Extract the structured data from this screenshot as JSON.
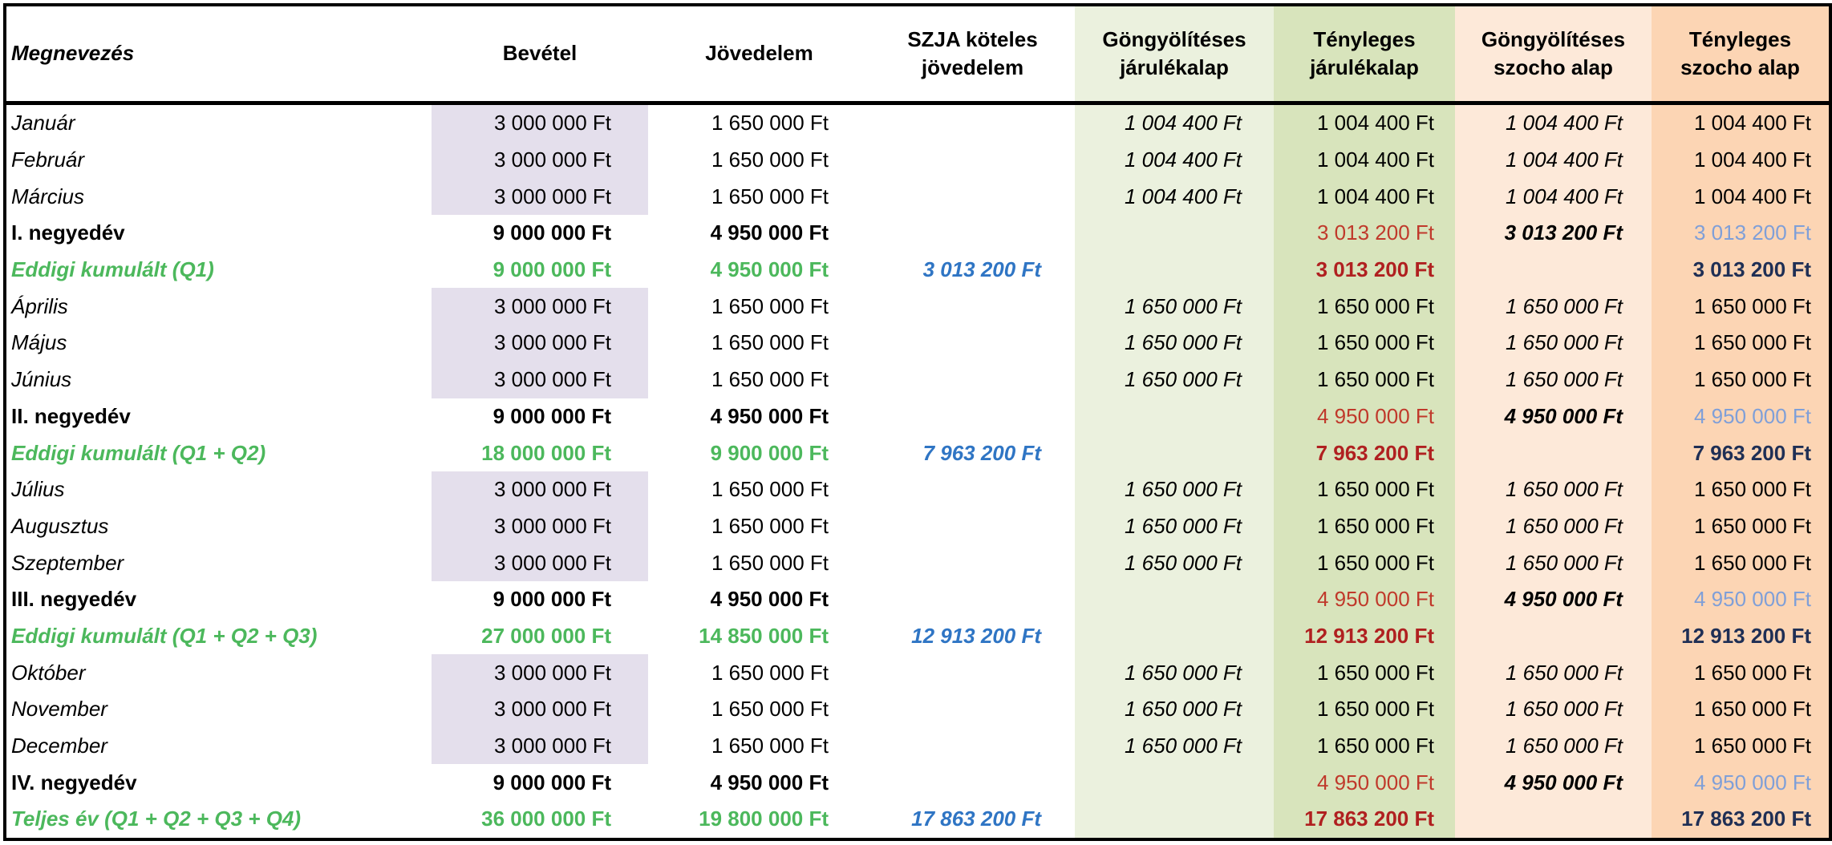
{
  "table": {
    "header": [
      "Megnevezés",
      "Bevétel",
      "Jövedelem",
      "SZJA köteles jövedelem",
      "Göngyölítéses járulékalap",
      "Tényleges járulékalap",
      "Göngyölítéses szocho alap",
      "Tényleges szocho alap"
    ],
    "rows": [
      [
        "Január",
        "3 000 000 Ft",
        "1 650 000 Ft",
        null,
        "1 004 400 Ft",
        "1 004 400 Ft",
        "1 004 400 Ft",
        "1 004 400 Ft"
      ],
      [
        "Február",
        "3 000 000 Ft",
        "1 650 000 Ft",
        null,
        "1 004 400 Ft",
        "1 004 400 Ft",
        "1 004 400 Ft",
        "1 004 400 Ft"
      ],
      [
        "Március",
        "3 000 000 Ft",
        "1 650 000 Ft",
        null,
        "1 004 400 Ft",
        "1 004 400 Ft",
        "1 004 400 Ft",
        "1 004 400 Ft"
      ],
      [
        "I. negyedév",
        "9 000 000 Ft",
        "4 950 000 Ft",
        null,
        null,
        "3 013 200 Ft",
        "3 013 200 Ft",
        "3 013 200 Ft"
      ],
      [
        "Eddigi kumulált (Q1)",
        "9 000 000 Ft",
        "4 950 000 Ft",
        "3 013 200 Ft",
        null,
        "3 013 200 Ft",
        null,
        "3 013 200 Ft"
      ],
      [
        "Április",
        "3 000 000 Ft",
        "1 650 000 Ft",
        null,
        "1 650 000 Ft",
        "1 650 000 Ft",
        "1 650 000 Ft",
        "1 650 000 Ft"
      ],
      [
        "Május",
        "3 000 000 Ft",
        "1 650 000 Ft",
        null,
        "1 650 000 Ft",
        "1 650 000 Ft",
        "1 650 000 Ft",
        "1 650 000 Ft"
      ],
      [
        "Június",
        "3 000 000 Ft",
        "1 650 000 Ft",
        null,
        "1 650 000 Ft",
        "1 650 000 Ft",
        "1 650 000 Ft",
        "1 650 000 Ft"
      ],
      [
        "II. negyedév",
        "9 000 000 Ft",
        "4 950 000 Ft",
        null,
        null,
        "4 950 000 Ft",
        "4 950 000 Ft",
        "4 950 000 Ft"
      ],
      [
        "Eddigi kumulált (Q1 + Q2)",
        "18 000 000 Ft",
        "9 900 000 Ft",
        "7 963 200 Ft",
        null,
        "7 963 200 Ft",
        null,
        "7 963 200 Ft"
      ],
      [
        "Július",
        "3 000 000 Ft",
        "1 650 000 Ft",
        null,
        "1 650 000 Ft",
        "1 650 000 Ft",
        "1 650 000 Ft",
        "1 650 000 Ft"
      ],
      [
        "Augusztus",
        "3 000 000 Ft",
        "1 650 000 Ft",
        null,
        "1 650 000 Ft",
        "1 650 000 Ft",
        "1 650 000 Ft",
        "1 650 000 Ft"
      ],
      [
        "Szeptember",
        "3 000 000 Ft",
        "1 650 000 Ft",
        null,
        "1 650 000 Ft",
        "1 650 000 Ft",
        "1 650 000 Ft",
        "1 650 000 Ft"
      ],
      [
        "III. negyedév",
        "9 000 000 Ft",
        "4 950 000 Ft",
        null,
        null,
        "4 950 000 Ft",
        "4 950 000 Ft",
        "4 950 000 Ft"
      ],
      [
        "Eddigi kumulált (Q1 + Q2 + Q3)",
        "27 000 000 Ft",
        "14 850 000 Ft",
        "12 913 200 Ft",
        null,
        "12 913 200 Ft",
        null,
        "12 913 200 Ft"
      ],
      [
        "Október",
        "3 000 000 Ft",
        "1 650 000 Ft",
        null,
        "1 650 000 Ft",
        "1 650 000 Ft",
        "1 650 000 Ft",
        "1 650 000 Ft"
      ],
      [
        "November",
        "3 000 000 Ft",
        "1 650 000 Ft",
        null,
        "1 650 000 Ft",
        "1 650 000 Ft",
        "1 650 000 Ft",
        "1 650 000 Ft"
      ],
      [
        "December",
        "3 000 000 Ft",
        "1 650 000 Ft",
        null,
        "1 650 000 Ft",
        "1 650 000 Ft",
        "1 650 000 Ft",
        "1 650 000 Ft"
      ],
      [
        "IV. negyedév",
        "9 000 000 Ft",
        "4 950 000 Ft",
        null,
        null,
        "4 950 000 Ft",
        "4 950 000 Ft",
        "4 950 000 Ft"
      ],
      [
        "Teljes év (Q1 + Q2 + Q3 + Q4)",
        "36 000 000 Ft",
        "19 800 000 Ft",
        "17 863 200 Ft",
        null,
        "17 863 200 Ft",
        null,
        "17 863 200 Ft"
      ]
    ]
  }
}
